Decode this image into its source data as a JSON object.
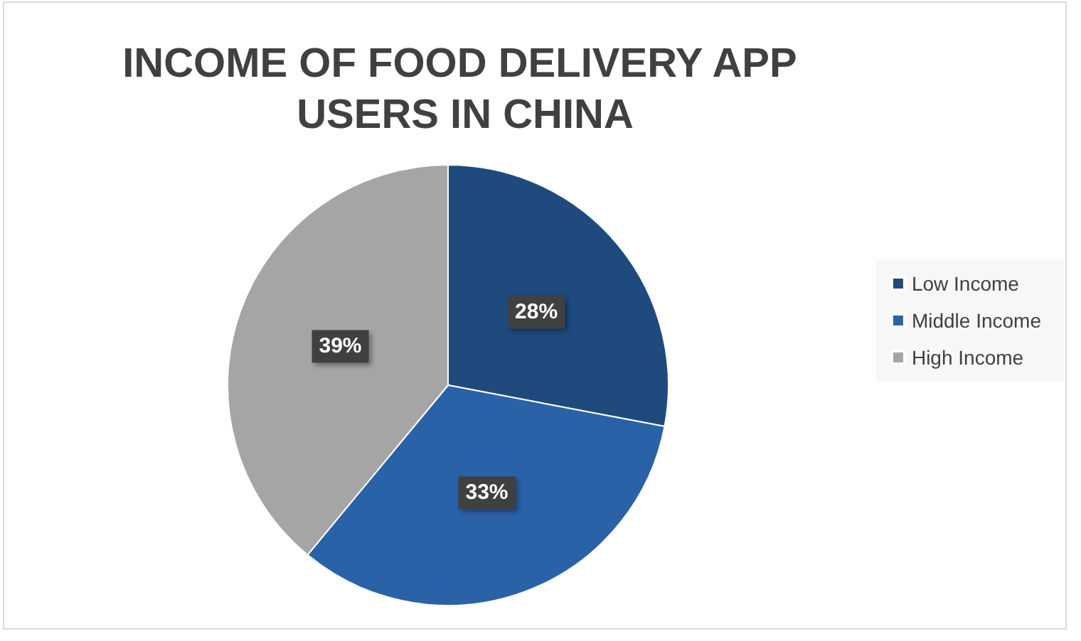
{
  "chart_data": {
    "type": "pie",
    "title": "INCOME OF FOOD DELIVERY APP USERS IN CHINA",
    "categories": [
      "Low Income",
      "Middle Income",
      "High Income"
    ],
    "values": [
      28,
      33,
      39
    ],
    "colors": [
      "#1f4a7e",
      "#2a62a8",
      "#a5a5a5"
    ],
    "value_labels": [
      "28%",
      "33%",
      "39%"
    ],
    "legend": "right"
  }
}
